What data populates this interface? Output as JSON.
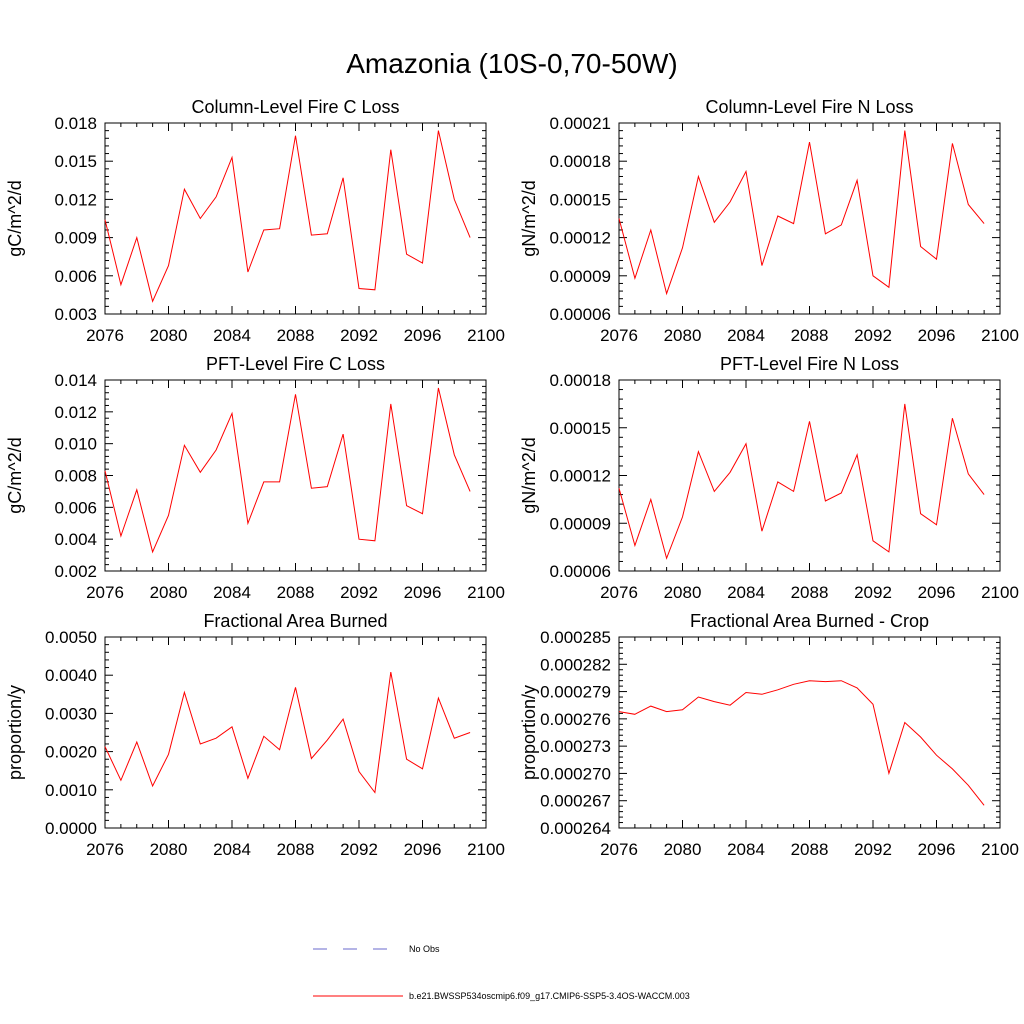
{
  "title": "Amazonia (10S-0,70-50W)",
  "colors": {
    "series": "#ff0000",
    "obs": "#6a6acd",
    "axis": "#000000"
  },
  "legend": {
    "obs_label": "No Obs",
    "model_label": "b.e21.BWSSP534oscmip6.f09_g17.CMIP6-SSP5-3.4OS-WACCM.003"
  },
  "chart_data": [
    {
      "type": "line",
      "title": "Column-Level Fire C Loss",
      "ylabel": "gC/m^2/d",
      "xlabel": "",
      "xlim": [
        2076,
        2100
      ],
      "ylim": [
        0.003,
        0.018
      ],
      "xticks": [
        "2076",
        "2080",
        "2084",
        "2088",
        "2092",
        "2096",
        "2100"
      ],
      "yticks": [
        "0.003",
        "0.006",
        "0.009",
        "0.012",
        "0.015",
        "0.018"
      ],
      "x": [
        2076,
        2077,
        2078,
        2079,
        2080,
        2081,
        2082,
        2083,
        2084,
        2085,
        2086,
        2087,
        2088,
        2089,
        2090,
        2091,
        2092,
        2093,
        2094,
        2095,
        2096,
        2097,
        2098,
        2099
      ],
      "values": [
        0.0104,
        0.0053,
        0.009,
        0.004,
        0.0068,
        0.0128,
        0.0105,
        0.0122,
        0.0153,
        0.0063,
        0.0096,
        0.0097,
        0.017,
        0.0092,
        0.0093,
        0.0137,
        0.005,
        0.0049,
        0.0159,
        0.0077,
        0.007,
        0.0174,
        0.012,
        0.009
      ]
    },
    {
      "type": "line",
      "title": "Column-Level Fire N Loss",
      "ylabel": "gN/m^2/d",
      "xlabel": "",
      "xlim": [
        2076,
        2100
      ],
      "ylim": [
        6e-05,
        0.00021
      ],
      "xticks": [
        "2076",
        "2080",
        "2084",
        "2088",
        "2092",
        "2096",
        "2100"
      ],
      "yticks": [
        "0.00006",
        "0.00009",
        "0.00012",
        "0.00015",
        "0.00018",
        "0.00021"
      ],
      "x": [
        2076,
        2077,
        2078,
        2079,
        2080,
        2081,
        2082,
        2083,
        2084,
        2085,
        2086,
        2087,
        2088,
        2089,
        2090,
        2091,
        2092,
        2093,
        2094,
        2095,
        2096,
        2097,
        2098,
        2099
      ],
      "values": [
        0.000135,
        8.8e-05,
        0.000126,
        7.6e-05,
        0.000112,
        0.000168,
        0.000132,
        0.000148,
        0.000172,
        9.8e-05,
        0.000137,
        0.000131,
        0.000195,
        0.000123,
        0.00013,
        0.000165,
        9e-05,
        8.1e-05,
        0.000204,
        0.000113,
        0.000103,
        0.000194,
        0.000146,
        0.000131
      ]
    },
    {
      "type": "line",
      "title": "PFT-Level Fire C Loss",
      "ylabel": "gC/m^2/d",
      "xlabel": "",
      "xlim": [
        2076,
        2100
      ],
      "ylim": [
        0.002,
        0.014
      ],
      "xticks": [
        "2076",
        "2080",
        "2084",
        "2088",
        "2092",
        "2096",
        "2100"
      ],
      "yticks": [
        "0.002",
        "0.004",
        "0.006",
        "0.008",
        "0.010",
        "0.012",
        "0.014"
      ],
      "x": [
        2076,
        2077,
        2078,
        2079,
        2080,
        2081,
        2082,
        2083,
        2084,
        2085,
        2086,
        2087,
        2088,
        2089,
        2090,
        2091,
        2092,
        2093,
        2094,
        2095,
        2096,
        2097,
        2098,
        2099
      ],
      "values": [
        0.0083,
        0.0042,
        0.0071,
        0.0032,
        0.0055,
        0.0099,
        0.0082,
        0.0096,
        0.0119,
        0.005,
        0.0076,
        0.0076,
        0.0131,
        0.0072,
        0.0073,
        0.0106,
        0.004,
        0.0039,
        0.0125,
        0.0061,
        0.0056,
        0.0135,
        0.0093,
        0.007
      ]
    },
    {
      "type": "line",
      "title": "PFT-Level Fire N Loss",
      "ylabel": "gN/m^2/d",
      "xlabel": "",
      "xlim": [
        2076,
        2100
      ],
      "ylim": [
        6e-05,
        0.00018
      ],
      "xticks": [
        "2076",
        "2080",
        "2084",
        "2088",
        "2092",
        "2096",
        "2100"
      ],
      "yticks": [
        "0.00006",
        "0.00009",
        "0.00012",
        "0.00015",
        "0.00018"
      ],
      "x": [
        2076,
        2077,
        2078,
        2079,
        2080,
        2081,
        2082,
        2083,
        2084,
        2085,
        2086,
        2087,
        2088,
        2089,
        2090,
        2091,
        2092,
        2093,
        2094,
        2095,
        2096,
        2097,
        2098,
        2099
      ],
      "values": [
        0.000112,
        7.6e-05,
        0.000105,
        6.8e-05,
        9.4e-05,
        0.000135,
        0.00011,
        0.000122,
        0.00014,
        8.5e-05,
        0.000116,
        0.00011,
        0.000154,
        0.000104,
        0.000109,
        0.000133,
        7.9e-05,
        7.2e-05,
        0.000165,
        9.6e-05,
        8.9e-05,
        0.000156,
        0.000121,
        0.000108
      ]
    },
    {
      "type": "line",
      "title": "Fractional Area Burned",
      "ylabel": "proportion/y",
      "xlabel": "",
      "xlim": [
        2076,
        2100
      ],
      "ylim": [
        0.0,
        0.005
      ],
      "xticks": [
        "2076",
        "2080",
        "2084",
        "2088",
        "2092",
        "2096",
        "2100"
      ],
      "yticks": [
        "0.0000",
        "0.0010",
        "0.0020",
        "0.0030",
        "0.0040",
        "0.0050"
      ],
      "x": [
        2076,
        2077,
        2078,
        2079,
        2080,
        2081,
        2082,
        2083,
        2084,
        2085,
        2086,
        2087,
        2088,
        2089,
        2090,
        2091,
        2092,
        2093,
        2094,
        2095,
        2096,
        2097,
        2098,
        2099
      ],
      "values": [
        0.00213,
        0.00125,
        0.00225,
        0.0011,
        0.00193,
        0.00355,
        0.0022,
        0.00235,
        0.00265,
        0.0013,
        0.0024,
        0.00205,
        0.00368,
        0.00182,
        0.0023,
        0.00285,
        0.00148,
        0.00093,
        0.00408,
        0.0018,
        0.00155,
        0.0034,
        0.00235,
        0.0025
      ]
    },
    {
      "type": "line",
      "title": "Fractional Area Burned - Crop",
      "ylabel": "proportion/y",
      "xlabel": "",
      "xlim": [
        2076,
        2100
      ],
      "ylim": [
        0.000264,
        0.000285
      ],
      "xticks": [
        "2076",
        "2080",
        "2084",
        "2088",
        "2092",
        "2096",
        "2100"
      ],
      "yticks": [
        "0.000264",
        "0.000267",
        "0.000270",
        "0.000273",
        "0.000276",
        "0.000279",
        "0.000282",
        "0.000285"
      ],
      "x": [
        2076,
        2077,
        2078,
        2079,
        2080,
        2081,
        2082,
        2083,
        2084,
        2085,
        2086,
        2087,
        2088,
        2089,
        2090,
        2091,
        2092,
        2093,
        2094,
        2095,
        2096,
        2097,
        2098,
        2099
      ],
      "values": [
        0.0002768,
        0.0002765,
        0.0002774,
        0.0002768,
        0.000277,
        0.0002784,
        0.0002779,
        0.0002775,
        0.0002789,
        0.0002787,
        0.0002792,
        0.0002798,
        0.0002802,
        0.0002801,
        0.0002802,
        0.0002794,
        0.0002776,
        0.00027,
        0.0002756,
        0.000274,
        0.000272,
        0.0002705,
        0.0002687,
        0.0002665
      ]
    }
  ]
}
